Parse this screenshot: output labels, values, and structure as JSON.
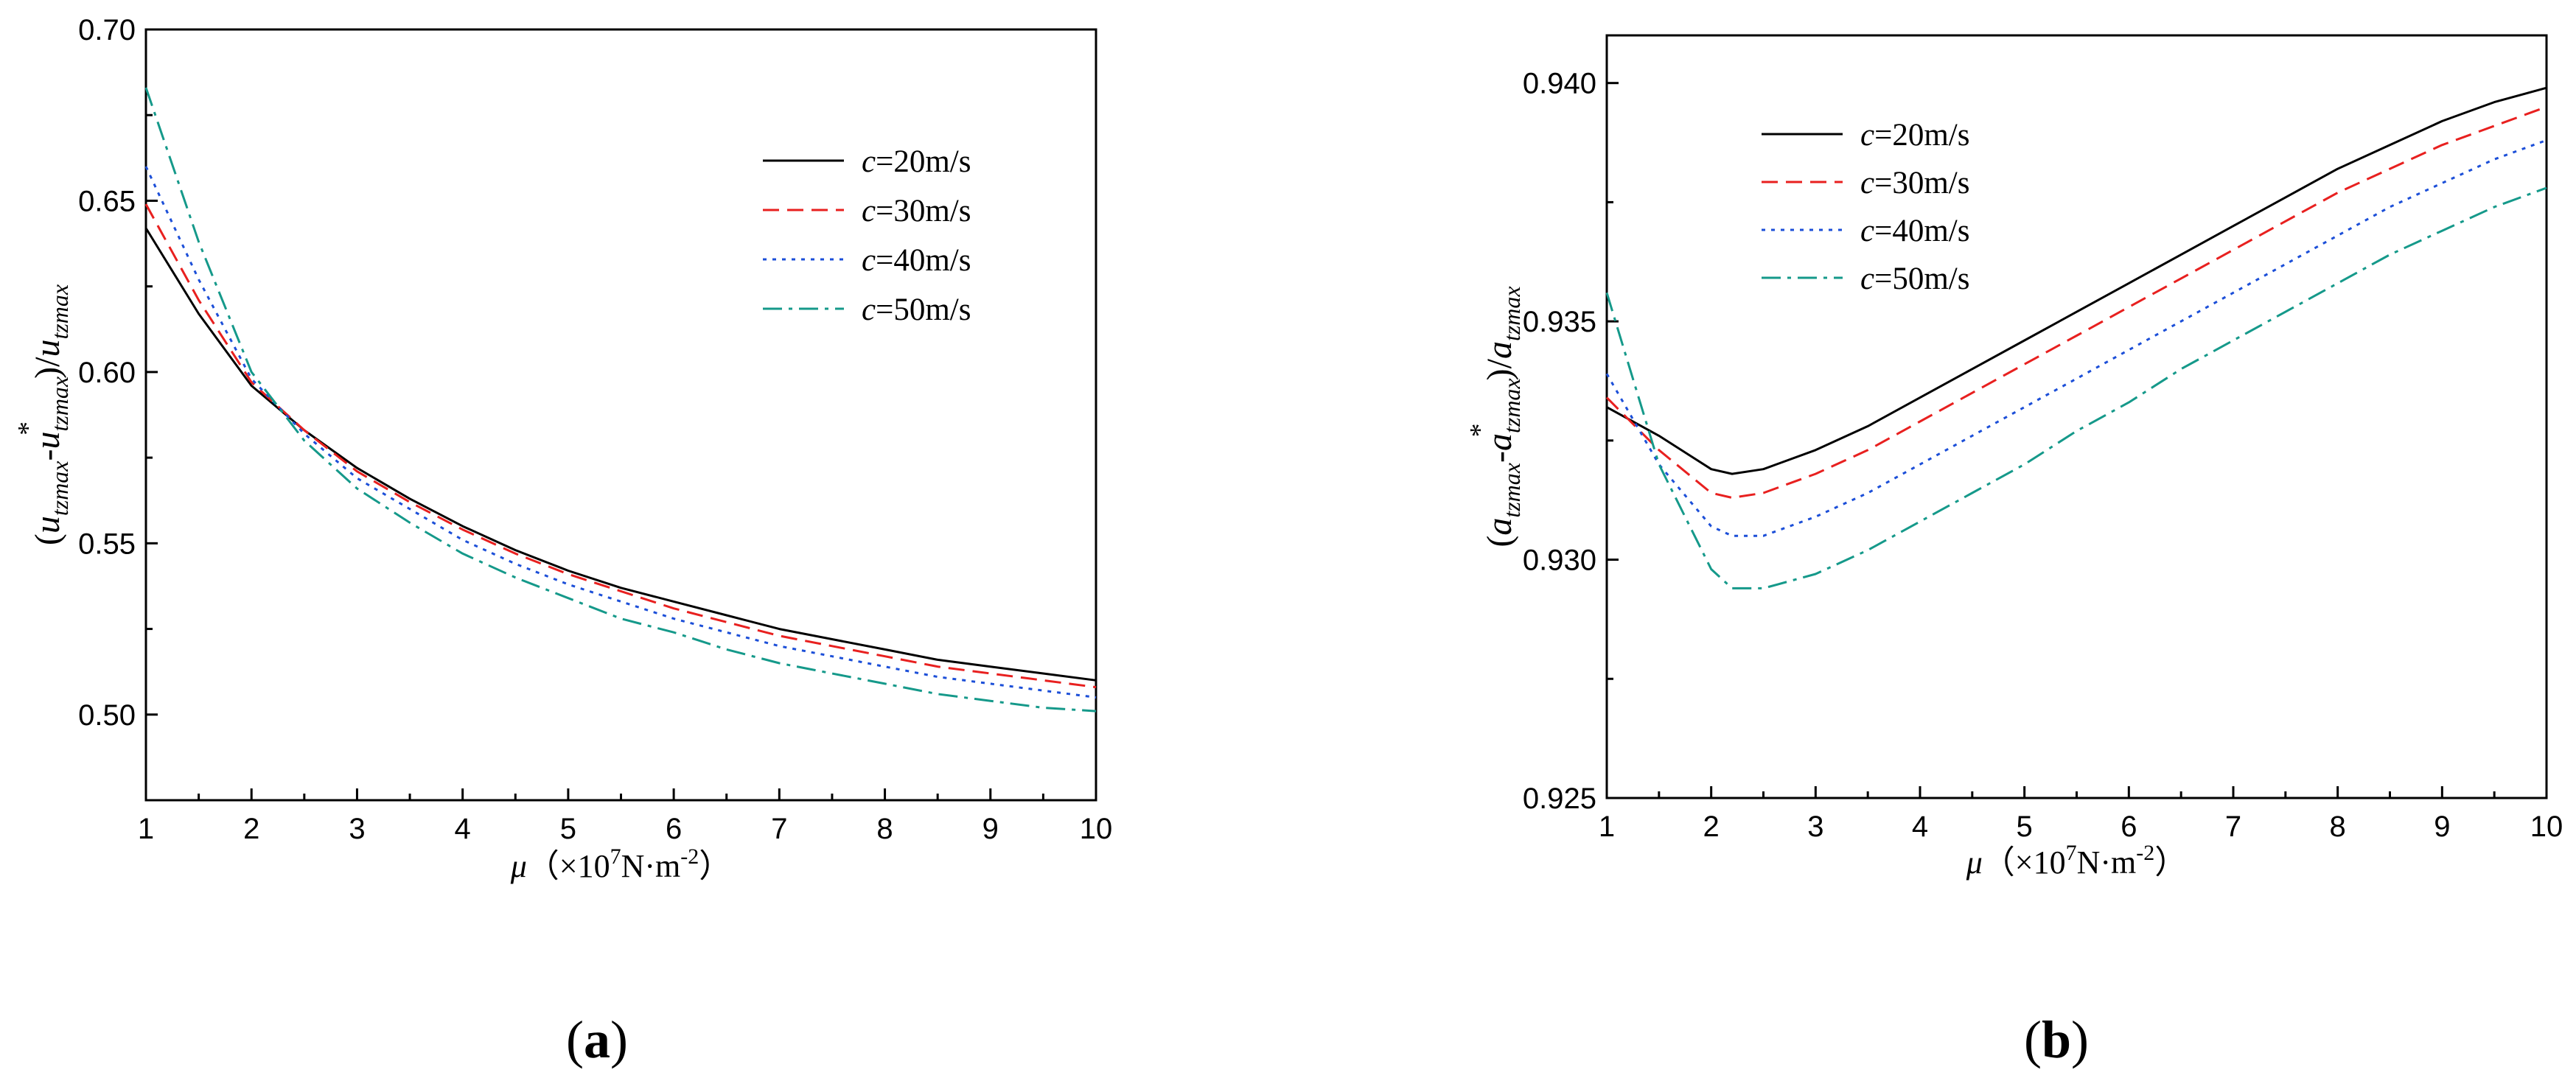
{
  "chart_data": [
    {
      "type": "line",
      "panel_label": {
        "open": "(",
        "letter": "a",
        "close": ")"
      },
      "xlabel": {
        "symbol": "μ",
        "open": "（×10",
        "exp": "7",
        "mid": "N·m",
        "exp2": "-2",
        "close": "）"
      },
      "ylabel": {
        "open": "(",
        "v1": "u",
        "s1": "tzmax",
        "dash": "-",
        "v2": "u",
        "s2": "tzmax",
        "star": "*",
        "close": ")/",
        "v3": "u",
        "s3": "tzmax"
      },
      "xlim": [
        1,
        10
      ],
      "ylim": [
        0.475,
        0.7
      ],
      "xticks": [
        1,
        2,
        3,
        4,
        5,
        6,
        7,
        8,
        9,
        10
      ],
      "yticks": [
        0.5,
        0.55,
        0.6,
        0.65,
        0.7
      ],
      "ytick_labels": [
        "0.50",
        "0.55",
        "0.60",
        "0.65",
        "0.70"
      ],
      "legend_position": "top-right",
      "x": [
        1,
        1.5,
        2,
        2.5,
        3,
        3.5,
        4,
        4.5,
        5,
        5.5,
        6,
        6.5,
        7,
        7.5,
        8,
        8.5,
        9,
        9.5,
        10
      ],
      "series": [
        {
          "name": "c",
          "suffix": "=20m/s",
          "color": "#000000",
          "dash": "solid",
          "values": [
            0.642,
            0.617,
            0.596,
            0.583,
            0.572,
            0.563,
            0.555,
            0.548,
            0.542,
            0.537,
            0.533,
            0.529,
            0.525,
            0.522,
            0.519,
            0.516,
            0.514,
            0.512,
            0.51
          ]
        },
        {
          "name": "c",
          "suffix": "=30m/s",
          "color": "#e8201f",
          "dash": "dashed",
          "values": [
            0.649,
            0.621,
            0.597,
            0.583,
            0.571,
            0.562,
            0.554,
            0.547,
            0.541,
            0.536,
            0.531,
            0.527,
            0.523,
            0.52,
            0.517,
            0.514,
            0.512,
            0.51,
            0.508
          ]
        },
        {
          "name": "c",
          "suffix": "=40m/s",
          "color": "#1c4fd8",
          "dash": "dotted",
          "values": [
            0.66,
            0.627,
            0.598,
            0.582,
            0.569,
            0.56,
            0.551,
            0.544,
            0.538,
            0.533,
            0.528,
            0.524,
            0.52,
            0.517,
            0.514,
            0.511,
            0.509,
            0.507,
            0.505
          ]
        },
        {
          "name": "c",
          "suffix": "=50m/s",
          "color": "#15998a",
          "dash": "dashdot",
          "values": [
            0.683,
            0.638,
            0.6,
            0.58,
            0.566,
            0.556,
            0.547,
            0.54,
            0.534,
            0.528,
            0.524,
            0.519,
            0.515,
            0.512,
            0.509,
            0.506,
            0.504,
            0.502,
            0.501
          ]
        }
      ]
    },
    {
      "type": "line",
      "panel_label": {
        "open": "(",
        "letter": "b",
        "close": ")"
      },
      "xlabel": {
        "symbol": "μ",
        "open": "（×10",
        "exp": "7",
        "mid": "N·m",
        "exp2": "-2",
        "close": "）"
      },
      "ylabel": {
        "open": "(",
        "v1": "a",
        "s1": "tzmax",
        "dash": "-",
        "v2": "a",
        "s2": "tzmax",
        "star": "*",
        "close": ")/",
        "v3": "a",
        "s3": "tzmax"
      },
      "xlim": [
        1,
        10
      ],
      "ylim": [
        0.925,
        0.941
      ],
      "xticks": [
        1,
        2,
        3,
        4,
        5,
        6,
        7,
        8,
        9,
        10
      ],
      "yticks": [
        0.925,
        0.93,
        0.935,
        0.94
      ],
      "ytick_labels": [
        "0.925",
        "0.930",
        "0.935",
        "0.940"
      ],
      "legend_position": "top-left",
      "x": [
        1,
        1.5,
        2,
        2.2,
        2.5,
        3,
        3.5,
        4,
        4.5,
        5,
        5.5,
        6,
        6.5,
        7,
        7.5,
        8,
        8.5,
        9,
        9.5,
        10
      ],
      "series": [
        {
          "name": "c",
          "suffix": "=20m/s",
          "color": "#000000",
          "dash": "solid",
          "values": [
            0.9332,
            0.9326,
            0.9319,
            0.9318,
            0.9319,
            0.9323,
            0.9328,
            0.9334,
            0.934,
            0.9346,
            0.9352,
            0.9358,
            0.9364,
            0.937,
            0.9376,
            0.9382,
            0.9387,
            0.9392,
            0.9396,
            0.9399
          ]
        },
        {
          "name": "c",
          "suffix": "=30m/s",
          "color": "#e8201f",
          "dash": "dashed",
          "values": [
            0.9334,
            0.9323,
            0.9314,
            0.9313,
            0.9314,
            0.9318,
            0.9323,
            0.9329,
            0.9335,
            0.9341,
            0.9347,
            0.9353,
            0.9359,
            0.9365,
            0.9371,
            0.9377,
            0.9382,
            0.9387,
            0.9391,
            0.9395
          ]
        },
        {
          "name": "c",
          "suffix": "=40m/s",
          "color": "#1c4fd8",
          "dash": "dotted",
          "values": [
            0.9339,
            0.932,
            0.9307,
            0.9305,
            0.9305,
            0.9309,
            0.9314,
            0.932,
            0.9326,
            0.9332,
            0.9338,
            0.9344,
            0.935,
            0.9356,
            0.9362,
            0.9368,
            0.9374,
            0.9379,
            0.9384,
            0.9388
          ]
        },
        {
          "name": "c",
          "suffix": "=50m/s",
          "color": "#15998a",
          "dash": "dashdot",
          "values": [
            0.9356,
            0.932,
            0.9298,
            0.9294,
            0.9294,
            0.9297,
            0.9302,
            0.9308,
            0.9314,
            0.932,
            0.9327,
            0.9333,
            0.934,
            0.9346,
            0.9352,
            0.9358,
            0.9364,
            0.9369,
            0.9374,
            0.9378
          ]
        }
      ]
    }
  ]
}
